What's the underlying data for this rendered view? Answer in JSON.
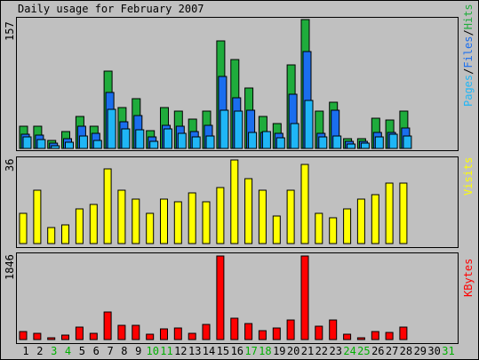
{
  "chart_data": {
    "type": "bar",
    "title": "Daily usage for February 2007",
    "categories": [
      "1",
      "2",
      "3",
      "4",
      "5",
      "6",
      "7",
      "8",
      "9",
      "10",
      "11",
      "12",
      "13",
      "14",
      "15",
      "16",
      "17",
      "18",
      "19",
      "20",
      "21",
      "22",
      "23",
      "24",
      "25",
      "26",
      "27",
      "28",
      "29",
      "30",
      "31"
    ],
    "weekend_days": [
      "3",
      "4",
      "10",
      "11",
      "17",
      "18",
      "24",
      "25",
      "31"
    ],
    "top_panel": {
      "ymax": 157,
      "ymax_label": "157",
      "side_labels": [
        "Pages",
        "Files",
        "Hits"
      ],
      "series": [
        {
          "name": "Hits",
          "color": "#1fac3c",
          "values": [
            27,
            27,
            10,
            21,
            39,
            27,
            94,
            50,
            61,
            22,
            50,
            46,
            36,
            46,
            131,
            108,
            74,
            39,
            30,
            102,
            157,
            46,
            56,
            12,
            12,
            37,
            35,
            45
          ]
        },
        {
          "name": "Files",
          "color": "#1a6eee",
          "values": [
            17,
            16,
            6,
            12,
            27,
            18,
            68,
            33,
            40,
            14,
            28,
            27,
            21,
            28,
            88,
            62,
            47,
            19,
            18,
            66,
            118,
            18,
            47,
            9,
            9,
            20,
            20,
            25
          ]
        },
        {
          "name": "Pages",
          "color": "#1fb6f6",
          "values": [
            14,
            11,
            3,
            8,
            15,
            10,
            48,
            24,
            23,
            9,
            24,
            18,
            14,
            15,
            47,
            46,
            19,
            21,
            13,
            30,
            59,
            14,
            15,
            5,
            6,
            14,
            17,
            15
          ]
        }
      ]
    },
    "middle_panel": {
      "ymax": 36,
      "ymax_label": "36",
      "side_labels": [
        "Visits"
      ],
      "series": [
        {
          "name": "Visits",
          "color": "#ffff00",
          "values": [
            13,
            23,
            7,
            8,
            15,
            17,
            32,
            23,
            19,
            13,
            19,
            18,
            22,
            18,
            24,
            36,
            28,
            23,
            12,
            23,
            34,
            13,
            11,
            15,
            19,
            21,
            26,
            26
          ]
        }
      ]
    },
    "bottom_panel": {
      "ymax": 1846,
      "ymax_label": "1846",
      "side_labels": [
        "KBytes"
      ],
      "series": [
        {
          "name": "KBytes",
          "color": "#ff0000",
          "values": [
            173,
            143,
            43,
            101,
            269,
            135,
            605,
            309,
            321,
            125,
            231,
            254,
            130,
            325,
            1846,
            462,
            363,
            201,
            261,
            433,
            1846,
            295,
            428,
            112,
            44,
            171,
            161,
            280
          ]
        }
      ]
    }
  }
}
